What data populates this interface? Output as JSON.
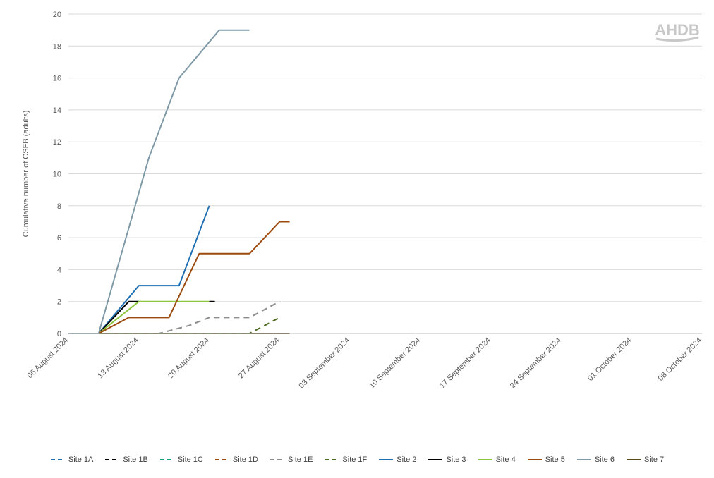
{
  "logo": {
    "text": "AHDB",
    "color": "#c8c8c8"
  },
  "chart_data": {
    "type": "line",
    "title": "",
    "xlabel": "",
    "ylabel": "Cumulative number of CSFB (adults)",
    "ylim": [
      0,
      20
    ],
    "yticks": [
      0,
      2,
      4,
      6,
      8,
      10,
      12,
      14,
      16,
      18,
      20
    ],
    "xlim": [
      "2024-08-06",
      "2024-10-08"
    ],
    "xticks": [
      "2024-08-06",
      "2024-08-13",
      "2024-08-20",
      "2024-08-27",
      "2024-09-03",
      "2024-09-10",
      "2024-09-17",
      "2024-09-24",
      "2024-10-01",
      "2024-10-08"
    ],
    "xtick_labels": [
      "06 August 2024",
      "13 August 2024",
      "20 August 2024",
      "27 August 2024",
      "03 September 2024",
      "10 September 2024",
      "17 September 2024",
      "24 September 2024",
      "01 October 2024",
      "08 October 2024"
    ],
    "grid": "horizontal",
    "legend_position": "bottom",
    "series": [
      {
        "name": "Site 1A",
        "color": "#1f6fb2",
        "dash": true,
        "points": []
      },
      {
        "name": "Site 1B",
        "color": "#000000",
        "dash": true,
        "points": []
      },
      {
        "name": "Site 1C",
        "color": "#13a37a",
        "dash": true,
        "points": []
      },
      {
        "name": "Site 1D",
        "color": "#9c4a0e",
        "dash": true,
        "points": []
      },
      {
        "name": "Site 1E",
        "color": "#8c8c8c",
        "dash": true,
        "points": [
          [
            "2024-08-06",
            0
          ],
          [
            "2024-08-09",
            0
          ],
          [
            "2024-08-12",
            0
          ],
          [
            "2024-08-15",
            0
          ],
          [
            "2024-08-18",
            0.5
          ],
          [
            "2024-08-20",
            1
          ],
          [
            "2024-08-24",
            1
          ],
          [
            "2024-08-27",
            2
          ]
        ]
      },
      {
        "name": "Site 1F",
        "color": "#4e6b1f",
        "dash": true,
        "points": [
          [
            "2024-08-06",
            0
          ],
          [
            "2024-08-09",
            0
          ],
          [
            "2024-08-15",
            0
          ],
          [
            "2024-08-20",
            0
          ],
          [
            "2024-08-24",
            0
          ],
          [
            "2024-08-27",
            1
          ]
        ]
      },
      {
        "name": "Site 2",
        "color": "#1f6fb2",
        "dash": false,
        "points": [
          [
            "2024-08-06",
            0
          ],
          [
            "2024-08-09",
            0
          ],
          [
            "2024-08-13",
            3
          ],
          [
            "2024-08-17",
            3
          ],
          [
            "2024-08-20",
            8
          ]
        ]
      },
      {
        "name": "Site 3",
        "color": "#000000",
        "dash": false,
        "points": [
          [
            "2024-08-06",
            0
          ],
          [
            "2024-08-09",
            0
          ],
          [
            "2024-08-12",
            2
          ],
          [
            "2024-08-13",
            2
          ]
        ]
      },
      {
        "name": "Site 4",
        "color": "#8cc63f",
        "dash": false,
        "points": [
          [
            "2024-08-06",
            0
          ],
          [
            "2024-08-09",
            0
          ],
          [
            "2024-08-13",
            2
          ],
          [
            "2024-08-20",
            2
          ]
        ]
      },
      {
        "name": "Site 5",
        "color": "#9c4a0e",
        "dash": false,
        "points": [
          [
            "2024-08-06",
            0
          ],
          [
            "2024-08-09",
            0
          ],
          [
            "2024-08-12",
            1
          ],
          [
            "2024-08-16",
            1
          ],
          [
            "2024-08-19",
            5
          ],
          [
            "2024-08-24",
            5
          ],
          [
            "2024-08-27",
            7
          ],
          [
            "2024-08-28",
            7
          ]
        ]
      },
      {
        "name": "Site 6",
        "color": "#7f99a6",
        "dash": false,
        "points": [
          [
            "2024-08-06",
            0
          ],
          [
            "2024-08-09",
            0
          ],
          [
            "2024-08-14",
            11
          ],
          [
            "2024-08-17",
            16
          ],
          [
            "2024-08-21",
            19
          ],
          [
            "2024-08-24",
            19
          ]
        ]
      },
      {
        "name": "Site 7",
        "color": "#5a4a1a",
        "dash": false,
        "points": [
          [
            "2024-08-06",
            0
          ],
          [
            "2024-08-28",
            0
          ]
        ]
      }
    ],
    "extra_segments": [
      {
        "series": "Site 1B",
        "color": "#000000",
        "dash": true,
        "points": [
          [
            "2024-08-20",
            2
          ],
          [
            "2024-08-21",
            2
          ]
        ]
      }
    ]
  }
}
